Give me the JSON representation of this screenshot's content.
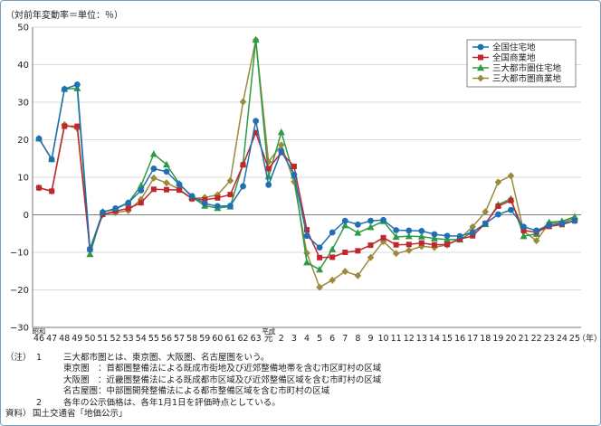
{
  "unit_label": "（対前年変動率＝単位：％）",
  "chart_data": {
    "type": "line",
    "ylim": [
      -30,
      50
    ],
    "y_ticks": [
      "50",
      "40",
      "30",
      "20",
      "10",
      "0",
      "−10",
      "−20",
      "−30"
    ],
    "grid": true,
    "legend_position": "top-right",
    "era_labels": [
      {
        "text": "昭和",
        "at_index": 0
      },
      {
        "text": "平成",
        "at_index": 18
      }
    ],
    "x_axis_suffix": "（年）",
    "categories": [
      "46",
      "47",
      "48",
      "49",
      "50",
      "51",
      "52",
      "53",
      "54",
      "55",
      "56",
      "57",
      "58",
      "59",
      "60",
      "61",
      "62",
      "63",
      "元",
      "2",
      "3",
      "4",
      "5",
      "6",
      "7",
      "8",
      "9",
      "10",
      "11",
      "12",
      "13",
      "14",
      "15",
      "16",
      "17",
      "18",
      "19",
      "20",
      "21",
      "22",
      "23",
      "24",
      "25"
    ],
    "series": [
      {
        "name": "全国住宅地",
        "color": "#1f6fb4",
        "marker": "circle",
        "values": [
          20.3,
          14.8,
          33.5,
          34.7,
          -9.2,
          0.7,
          1.7,
          3.2,
          6.5,
          12.3,
          11.5,
          8.1,
          5.0,
          3.0,
          2.3,
          2.4,
          7.6,
          25.0,
          8.0,
          17.0,
          10.7,
          -5.6,
          -8.7,
          -4.7,
          -1.6,
          -2.6,
          -1.6,
          -1.4,
          -4.1,
          -4.2,
          -4.3,
          -5.2,
          -5.6,
          -5.7,
          -4.6,
          -2.3,
          0.1,
          1.3,
          -3.2,
          -4.2,
          -2.7,
          -2.3,
          -1.6
        ]
      },
      {
        "name": "全国商業地",
        "color": "#c0272d",
        "marker": "square",
        "values": [
          7.2,
          6.3,
          23.6,
          23.6,
          -9.2,
          0.1,
          1.0,
          1.7,
          3.2,
          6.8,
          6.7,
          6.6,
          4.3,
          4.0,
          4.5,
          5.4,
          13.3,
          21.9,
          12.3,
          16.6,
          12.9,
          -4.0,
          -11.4,
          -11.3,
          -10.0,
          -9.6,
          -8.1,
          -6.1,
          -8.0,
          -7.9,
          -7.5,
          -8.0,
          -7.9,
          -6.5,
          -5.6,
          -2.3,
          2.3,
          3.8,
          -4.2,
          -4.6,
          -3.1,
          -2.6,
          -1.6
        ]
      },
      {
        "name": "三大都市圏住宅地",
        "color": "#2e9b45",
        "marker": "triangle",
        "values": [
          20.3,
          14.8,
          33.5,
          33.7,
          -10.5,
          0.8,
          1.5,
          3.2,
          7.8,
          16.2,
          13.4,
          8.3,
          4.7,
          2.4,
          1.8,
          2.2,
          13.6,
          46.6,
          10.2,
          22.0,
          10.4,
          -12.7,
          -14.6,
          -9.2,
          -2.8,
          -4.8,
          -3.3,
          -1.7,
          -5.9,
          -5.7,
          -5.8,
          -6.3,
          -6.6,
          -6.6,
          -4.6,
          -2.5,
          2.7,
          4.3,
          -5.7,
          -5.1,
          -2.0,
          -1.7,
          -0.5
        ]
      },
      {
        "name": "三大都市圏商業地",
        "color": "#9a8a3e",
        "marker": "diamond",
        "values": [
          7.2,
          6.3,
          24.0,
          23.0,
          -9.2,
          0.1,
          0.6,
          1.1,
          4.1,
          9.8,
          8.5,
          6.8,
          4.3,
          4.6,
          5.3,
          9.1,
          30.1,
          46.6,
          14.1,
          18.6,
          8.8,
          -10.2,
          -19.3,
          -17.4,
          -15.1,
          -16.2,
          -11.4,
          -7.1,
          -10.3,
          -9.5,
          -8.4,
          -8.7,
          -8.0,
          -6.3,
          -3.2,
          0.8,
          8.7,
          10.4,
          -4.4,
          -6.9,
          -2.2,
          -2.0,
          -1.0
        ]
      }
    ]
  },
  "notes": [
    {
      "label": "（注）",
      "num": "1",
      "text": "三大都市圏とは、東京圏、大阪圏、名古屋圏をいう。"
    },
    {
      "label": "",
      "num": "",
      "text": "東京圏　：首都圏整備法による既成市街地及び近郊整備地帯を含む市区町村の区域"
    },
    {
      "label": "",
      "num": "",
      "text": "大阪圏　：近畿圏整備法による既成都市区域及び近郊整備区域を含む市町村の区域"
    },
    {
      "label": "",
      "num": "",
      "text": "名古屋圏：中部圏開発整備法による都市整備区域を含む市町村の区域"
    },
    {
      "label": "",
      "num": "2",
      "text": "各年の公示価格は、各年1月1日を評価時点としている。"
    },
    {
      "label": "資料）",
      "num": "",
      "text": "国土交通省「地価公示」"
    }
  ]
}
